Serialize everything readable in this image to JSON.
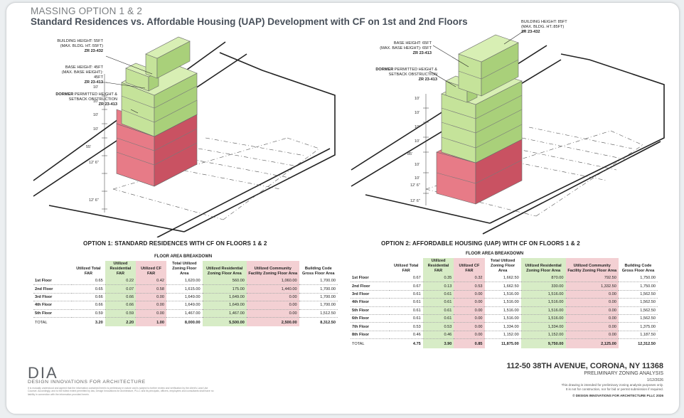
{
  "header": {
    "title": "MASSING OPTION 1 & 2",
    "subtitle": "Standard Residences vs. Affordable Housing (UAP) Development with CF on 1st and 2nd Floors"
  },
  "option1": {
    "heading": "OPTION 1: STANDARD RESIDENCES WITH CF ON FLOORS 1 & 2",
    "annotations": {
      "building_height": {
        "l1": "BUILDING HEIGHT: 55FT",
        "l2": "(MAX. BLDG. HT.:55FT)",
        "ref": "ZR 23-432"
      },
      "base_height": {
        "l1": "BASE HEIGHT: 45FT",
        "l2": "(MAX. BASE HEIGHT): 45FT",
        "ref": "ZR 23-413"
      },
      "dormer": {
        "l1a": "DORMER",
        "l1b": " PERMITTED HEIGHT &",
        "l2": "SETBACK OBSTRUCTION",
        "ref": "ZR 23-413"
      }
    },
    "dims": [
      "10'",
      "10'",
      "10'",
      "10'",
      "55'",
      "12' 6\"",
      "12' 6\""
    ],
    "table": {
      "caption": "FLOOR AREA BREAKDOWN",
      "headers": [
        "",
        "Utilized Total FAR",
        "Utilized Residential FAR",
        "Utilized CF FAR",
        "Total Utilized Zoning Floor Area",
        "Utilized Residential Zoning Floor Area",
        "Utilized Community Facility Zoning Floor Area",
        "Building Code Gross Floor Area"
      ],
      "rows": [
        [
          "1st Floor",
          "0.65",
          "0.22",
          "0.42",
          "1,620.00",
          "560.00",
          "1,060.00",
          "1,700.00"
        ],
        [
          "2nd Floor",
          "0.65",
          "0.07",
          "0.58",
          "1,615.00",
          "175.00",
          "1,440.00",
          "1,700.00"
        ],
        [
          "3rd Floor",
          "0.66",
          "0.66",
          "0.00",
          "1,649.00",
          "1,649.00",
          "0.00",
          "1,700.00"
        ],
        [
          "4th Floor",
          "0.66",
          "0.66",
          "0.00",
          "1,649.00",
          "1,649.00",
          "0.00",
          "1,700.00"
        ],
        [
          "5th Floor",
          "0.59",
          "0.59",
          "0.00",
          "1,467.00",
          "1,467.00",
          "0.00",
          "1,512.50"
        ]
      ],
      "total": [
        "TOTAL",
        "3.20",
        "2.20",
        "1.00",
        "8,000.00",
        "5,500.00",
        "2,500.00",
        "8,312.50"
      ]
    }
  },
  "option2": {
    "heading": "OPTION 2: AFFORDABLE HOUSING (UAP) WITH CF ON FLOORS 1 & 2",
    "annotations": {
      "building_height": {
        "l1": "BUILDING HEIGHT: 85FT",
        "l2": "(MAX. BLDG. HT.:85FT)",
        "ref": "ZR 23-432"
      },
      "base_height": {
        "l1": "BASE HEIGHT: 65FT",
        "l2": "(MAX. BASE HEIGHT): 65FT",
        "ref": "ZR 23-413"
      },
      "dormer": {
        "l1a": "DORMER",
        "l1b": " PERMITTED HEIGHT &",
        "l2": "SETBACK OBSTRUCTION",
        "ref": "ZR 23-413"
      }
    },
    "dims": [
      "10'",
      "10'",
      "10'",
      "10'",
      "10'",
      "10'",
      "85'",
      "12' 6\"",
      "12' 6\""
    ],
    "table": {
      "caption": "FLOOR AREA BREAKDOWN",
      "headers": [
        "",
        "Utilized Total FAR",
        "Utilized Residential FAR",
        "Utilized CF FAR",
        "Total Utilized Zoning Floor Area",
        "Utilized Residential Zoning Floor Area",
        "Utilized Community Facility Zoning Floor Area",
        "Building Code Gross Floor Area"
      ],
      "rows": [
        [
          "1st Floor",
          "0.67",
          "0.35",
          "0.32",
          "1,662.50",
          "870.00",
          "792.50",
          "1,750.00"
        ],
        [
          "2nd Floor",
          "0.67",
          "0.13",
          "0.53",
          "1,662.50",
          "330.00",
          "1,332.50",
          "1,750.00"
        ],
        [
          "3rd Floor",
          "0.61",
          "0.61",
          "0.00",
          "1,516.00",
          "1,516.00",
          "0.00",
          "1,562.50"
        ],
        [
          "4th Floor",
          "0.61",
          "0.61",
          "0.00",
          "1,516.00",
          "1,516.00",
          "0.00",
          "1,562.50"
        ],
        [
          "5th Floor",
          "0.61",
          "0.61",
          "0.00",
          "1,516.00",
          "1,516.00",
          "0.00",
          "1,562.50"
        ],
        [
          "6th Floor",
          "0.61",
          "0.61",
          "0.00",
          "1,516.00",
          "1,516.00",
          "0.00",
          "1,562.50"
        ],
        [
          "7th Floor",
          "0.53",
          "0.53",
          "0.00",
          "1,334.00",
          "1,334.00",
          "0.00",
          "1,375.00"
        ],
        [
          "8th Floor",
          "0.46",
          "0.46",
          "0.00",
          "1,152.00",
          "1,152.00",
          "0.00",
          "1,187.50"
        ]
      ],
      "total": [
        "TOTAL",
        "4.75",
        "3.90",
        "0.85",
        "11,875.00",
        "9,750.00",
        "2,125.00",
        "12,312.50"
      ]
    }
  },
  "footer": {
    "logo": "DIA",
    "firm": "DESIGN INNOVATIONS FOR ARCHITECTURE",
    "fine_print": "It is mutually understood and agreed that the information contained herein is preliminary in nature and is subject to further review and verification by the client's Land Use Counsel. Accordingly, and to the fullest extent permitted by law, Design Innovations for Architecture, PLLC and its principals, officers, employees and consultants shall have no liability in connection with the information provided herein.",
    "address": "112-50 38TH AVENUE, CORONA, NY 11368",
    "subtitle": "PRELIMINARY ZONING ANALYSIS",
    "date": "1/12/2026",
    "disclaimer1": "This drawing is intended for preliminary zoning analysis purposes only.",
    "disclaimer2": "It is not for construction, nor for bid or permit submission if required.",
    "copyright": "© DESIGN INNOVATIONS FOR ARCHITECTURE PLLC 2026"
  },
  "colors": {
    "residential": "#b6d98a",
    "community_facility": "#e0707c",
    "green_cell": "#d7ecc6",
    "red_cell": "#f3d0d3"
  }
}
